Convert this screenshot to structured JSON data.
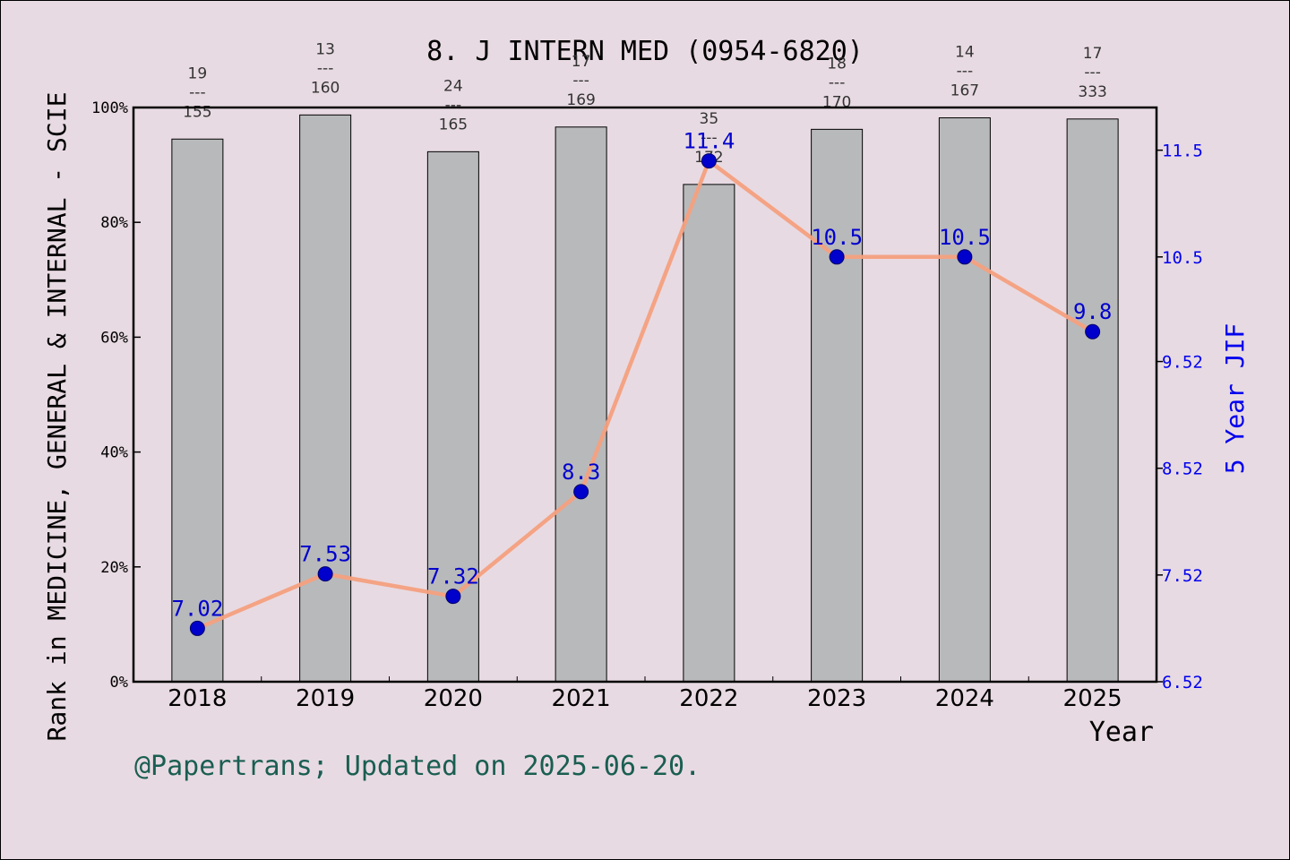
{
  "chart_data": {
    "type": "bar",
    "title": "8. J INTERN MED (0954-6820)",
    "xlabel": "Year",
    "ylabel_left": "Rank in MEDICINE, GENERAL & INTERNAL - SCIE",
    "ylabel_right": "5 Year JIF",
    "categories": [
      "2018",
      "2019",
      "2020",
      "2021",
      "2022",
      "2023",
      "2024",
      "2025"
    ],
    "y_left_ticks": [
      "0%",
      "20%",
      "40%",
      "60%",
      "80%",
      "100%"
    ],
    "y_left_lim": [
      0,
      100
    ],
    "y_right_ticks": [
      "6.52",
      "7.52",
      "8.52",
      "9.52",
      "10.5",
      "11.5"
    ],
    "y_right_lim": [
      6.52,
      11.9
    ],
    "series": [
      {
        "kind": "bar",
        "values": [
          94.5,
          98.7,
          92.3,
          96.6,
          86.6,
          96.2,
          98.2,
          98.0
        ],
        "rank": [
          "19",
          "13",
          "24",
          "17",
          "35",
          "18",
          "14",
          "17"
        ],
        "total": [
          "155",
          "160",
          "165",
          "169",
          "172",
          "170",
          "167",
          "333"
        ],
        "color": "#b8b9bb"
      },
      {
        "kind": "line",
        "values": [
          7.02,
          7.53,
          7.32,
          8.3,
          11.4,
          10.5,
          10.5,
          9.8
        ],
        "labels": [
          "7.02",
          "7.53",
          "7.32",
          "8.3",
          "11.4",
          "10.5",
          "10.5",
          "9.8"
        ],
        "color": "#f4a07e",
        "marker_color": "#0000cc"
      }
    ],
    "grid": false
  },
  "footer": "@Papertrans; Updated on 2025-06-20."
}
